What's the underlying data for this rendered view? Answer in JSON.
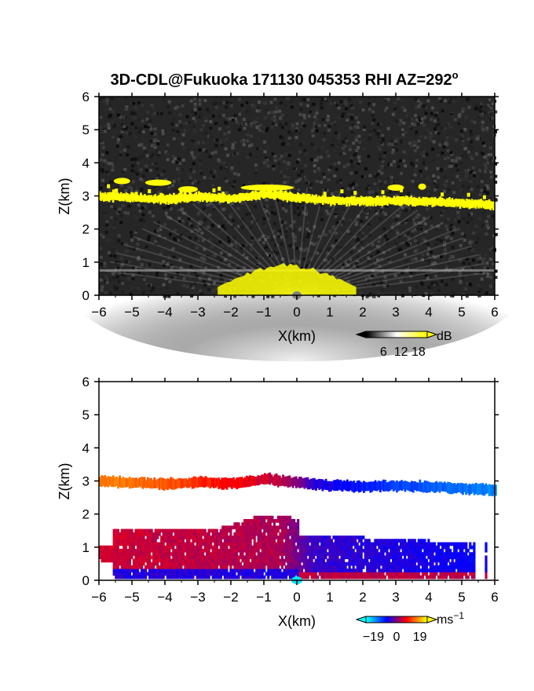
{
  "figure_title": "3D-CDL@Fukuoka 171130 045353 RHI AZ=292",
  "figure_title_super": "o",
  "chart_data": [
    {
      "type": "heatmap",
      "title": "",
      "xlabel": "X(km)",
      "ylabel": "Z(km)",
      "xlim": [
        -6,
        6
      ],
      "ylim": [
        0,
        6
      ],
      "x_ticks": [
        -6,
        -5,
        -4,
        -3,
        -2,
        -1,
        0,
        1,
        2,
        3,
        4,
        5,
        6
      ],
      "y_ticks": [
        0,
        1,
        2,
        3,
        4,
        5,
        6
      ],
      "colorbar": {
        "unit": "dB",
        "ticks": [
          6,
          12,
          18
        ],
        "range": [
          0,
          21
        ],
        "colors": [
          "#000000",
          "#ffffff",
          "#ffff00"
        ]
      },
      "features": {
        "cloud_layer": [
          {
            "x": -6.0,
            "z": 2.98
          },
          {
            "x": -5.0,
            "z": 2.95
          },
          {
            "x": -4.0,
            "z": 2.9
          },
          {
            "x": -3.0,
            "z": 2.97
          },
          {
            "x": -2.0,
            "z": 2.92
          },
          {
            "x": -1.0,
            "z": 3.06
          },
          {
            "x": 0.0,
            "z": 2.95
          },
          {
            "x": 1.0,
            "z": 2.86
          },
          {
            "x": 2.0,
            "z": 2.83
          },
          {
            "x": 3.0,
            "z": 2.86
          },
          {
            "x": 4.0,
            "z": 2.82
          },
          {
            "x": 5.0,
            "z": 2.78
          },
          {
            "x": 6.0,
            "z": 2.72
          }
        ],
        "near_surface_echo": {
          "x_range": [
            -2.4,
            1.8
          ],
          "z_top": 0.95
        }
      }
    },
    {
      "type": "heatmap",
      "title": "",
      "xlabel": "X(km)",
      "ylabel": "Z(km)",
      "xlim": [
        -6,
        6
      ],
      "ylim": [
        0,
        6
      ],
      "x_ticks": [
        -6,
        -5,
        -4,
        -3,
        -2,
        -1,
        0,
        1,
        2,
        3,
        4,
        5,
        6
      ],
      "y_ticks": [
        0,
        1,
        2,
        3,
        4,
        5,
        6
      ],
      "colorbar": {
        "unit": "ms",
        "unit_super": "−1",
        "ticks": [
          "−19",
          "0",
          "19"
        ],
        "tick_values": [
          -19,
          0,
          19
        ],
        "range": [
          -25,
          25
        ],
        "colors": [
          "#00ffff",
          "#0000ff",
          "#ff0000",
          "#ffff00"
        ]
      },
      "features": {
        "upper_layer_velocity": [
          {
            "x": -5.5,
            "v": 16
          },
          {
            "x": -4.0,
            "v": 14
          },
          {
            "x": -2.0,
            "v": 8
          },
          {
            "x": -0.5,
            "v": 4
          },
          {
            "x": 0.5,
            "v": -6
          },
          {
            "x": 2.0,
            "v": -10
          },
          {
            "x": 4.0,
            "v": -14
          },
          {
            "x": 6.0,
            "v": -17
          }
        ],
        "lower_layer_velocity": [
          {
            "x": -5.5,
            "v": 5
          },
          {
            "x": -3.0,
            "v": 4
          },
          {
            "x": -0.5,
            "v": 3
          },
          {
            "x": 0.5,
            "v": -5
          },
          {
            "x": 2.5,
            "v": -6
          },
          {
            "x": 5.0,
            "v": -8
          }
        ],
        "surface_reversed_flow": {
          "left_v": -6,
          "right_v": 4
        }
      }
    }
  ]
}
